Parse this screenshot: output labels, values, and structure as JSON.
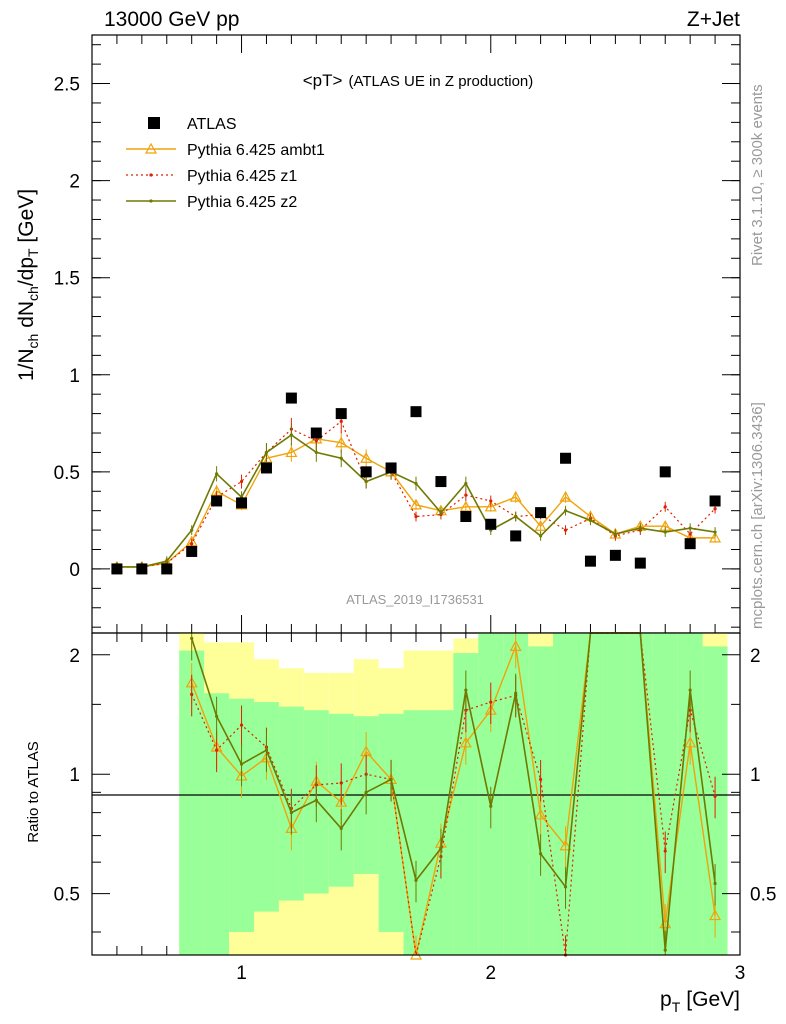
{
  "header": {
    "left": "13000 GeV pp",
    "right": "Z+Jet"
  },
  "side_text": {
    "rivet": "Rivet 3.1.10, ≥ 300k events",
    "mcplots": "mcplots.cern.ch [arXiv:1306.3436]"
  },
  "chart_data": {
    "type": "line",
    "title": "<pT>",
    "subtitle": "(ATLAS UE in Z production)",
    "analysis_id": "ATLAS_2019_I1736531",
    "xlabel": "p",
    "xlabel_sub": "T",
    "xlabel_unit": "[GeV]",
    "ylabel": "1/N",
    "ylabel_parts": [
      "1/N",
      "ch",
      " dN",
      "ch",
      "/dp",
      "T",
      " [GeV]"
    ],
    "ratio_ylabel": "Ratio to ATLAS",
    "xlim": [
      0.4,
      3.0
    ],
    "ylim": [
      -0.33,
      2.75
    ],
    "ratio_ylim": [
      0.35,
      2.27
    ],
    "x_ticks": [
      "1",
      "2",
      "3"
    ],
    "y_ticks": [
      "0",
      "0.5",
      "1",
      "1.5",
      "2",
      "2.5"
    ],
    "ratio_ticks": [
      "0.5",
      "1",
      "2"
    ],
    "legend_position": "top-left",
    "colors": {
      "data": "#000000",
      "ambt1": "#f0a30a",
      "z1": "#dd2200",
      "z2": "#6e7a00",
      "band_green": "#99ff99",
      "band_yellow": "#ffff99",
      "watermark": "#999999"
    },
    "x": [
      0.5,
      0.6,
      0.7,
      0.8,
      0.9,
      1.0,
      1.1,
      1.2,
      1.3,
      1.4,
      1.5,
      1.6,
      1.7,
      1.8,
      1.9,
      2.0,
      2.1,
      2.2,
      2.3,
      2.4,
      2.5,
      2.6,
      2.7,
      2.8,
      2.9
    ],
    "series": [
      {
        "name": "ATLAS",
        "key": "data",
        "values": [
          0.0,
          0.0,
          0.0,
          0.09,
          0.35,
          0.34,
          0.52,
          0.88,
          0.7,
          0.8,
          0.5,
          0.52,
          0.81,
          0.45,
          0.27,
          0.23,
          0.17,
          0.29,
          0.57,
          0.04,
          0.07,
          0.03,
          0.5,
          0.13,
          0.35
        ]
      },
      {
        "name": "Pythia 6.425 ambt1",
        "key": "ambt1",
        "values": [
          0.01,
          0.01,
          0.03,
          0.14,
          0.4,
          0.33,
          0.57,
          0.6,
          0.67,
          0.65,
          0.57,
          0.5,
          0.33,
          0.3,
          0.32,
          0.32,
          0.37,
          0.22,
          0.37,
          0.27,
          0.18,
          0.22,
          0.22,
          0.16,
          0.16
        ]
      },
      {
        "name": "Pythia 6.425 z1",
        "key": "z1",
        "values": [
          0.01,
          0.01,
          0.03,
          0.13,
          0.37,
          0.45,
          0.6,
          0.72,
          0.66,
          0.76,
          0.45,
          0.5,
          0.27,
          0.28,
          0.38,
          0.35,
          0.27,
          0.28,
          0.2,
          0.26,
          0.17,
          0.2,
          0.32,
          0.18,
          0.31
        ]
      },
      {
        "name": "Pythia 6.425 z2",
        "key": "z2",
        "values": [
          0.01,
          0.01,
          0.04,
          0.2,
          0.49,
          0.37,
          0.6,
          0.69,
          0.6,
          0.57,
          0.45,
          0.5,
          0.44,
          0.29,
          0.44,
          0.2,
          0.27,
          0.17,
          0.3,
          0.25,
          0.18,
          0.21,
          0.19,
          0.21,
          0.19
        ]
      }
    ],
    "ratios": {
      "ambt1": [
        null,
        null,
        null,
        1.7,
        1.17,
        0.99,
        1.1,
        0.73,
        0.96,
        0.85,
        1.14,
        0.97,
        0.35,
        0.67,
        1.2,
        1.45,
        2.1,
        0.79,
        0.66,
        5.0,
        5.0,
        5.0,
        0.42,
        1.2,
        0.44
      ],
      "z1": [
        null,
        null,
        null,
        1.59,
        1.15,
        1.33,
        1.17,
        0.82,
        0.94,
        0.95,
        1.0,
        0.97,
        0.33,
        0.62,
        1.45,
        1.52,
        1.58,
        0.97,
        0.35,
        5.0,
        5.0,
        5.0,
        0.64,
        1.45,
        0.88
      ],
      "z2": [
        null,
        null,
        null,
        2.2,
        1.4,
        1.06,
        1.15,
        0.8,
        0.86,
        0.73,
        0.9,
        0.97,
        0.54,
        0.65,
        1.63,
        0.83,
        1.6,
        0.63,
        0.52,
        5.0,
        5.0,
        5.0,
        0.36,
        1.63,
        0.53
      ]
    },
    "ratio_bands": {
      "x_edges": [
        0.75,
        0.85,
        0.95,
        1.05,
        1.15,
        1.25,
        1.35,
        1.45,
        1.55,
        1.65,
        1.75,
        1.85,
        1.95,
        2.05,
        2.15,
        2.25,
        2.35,
        2.45,
        2.55,
        2.65,
        2.75,
        2.85,
        2.95
      ],
      "inner": [
        [
          0.35,
          2.05
        ],
        [
          0.35,
          1.6
        ],
        [
          0.35,
          1.55
        ],
        [
          0.35,
          1.52
        ],
        [
          0.35,
          1.48
        ],
        [
          0.35,
          1.45
        ],
        [
          0.35,
          1.42
        ],
        [
          0.35,
          1.4
        ],
        [
          0.35,
          1.42
        ],
        [
          0.35,
          1.45
        ],
        [
          0.35,
          1.45
        ],
        [
          0.35,
          2.02
        ],
        [
          0.35,
          2.27
        ],
        [
          0.35,
          2.27
        ],
        [
          0.35,
          2.1
        ],
        [
          0.35,
          2.27
        ],
        [
          0.35,
          2.27
        ],
        [
          0.35,
          2.27
        ],
        [
          0.35,
          2.27
        ],
        [
          0.35,
          2.27
        ],
        [
          0.35,
          2.27
        ],
        [
          0.35,
          2.1
        ]
      ],
      "outer": [
        [
          0.35,
          2.27
        ],
        [
          0.35,
          2.15
        ],
        [
          0.35,
          2.15
        ],
        [
          0.35,
          1.95
        ],
        [
          0.35,
          1.85
        ],
        [
          0.35,
          1.8
        ],
        [
          0.35,
          1.8
        ],
        [
          0.35,
          1.95
        ],
        [
          0.35,
          1.85
        ],
        [
          0.35,
          2.05
        ],
        [
          0.35,
          2.05
        ],
        [
          0.35,
          2.2
        ],
        [
          0.35,
          2.27
        ],
        [
          0.35,
          2.27
        ],
        [
          0.35,
          2.27
        ],
        [
          0.35,
          2.27
        ],
        [
          0.35,
          2.27
        ],
        [
          0.35,
          2.27
        ],
        [
          0.35,
          2.27
        ],
        [
          0.35,
          2.27
        ],
        [
          0.35,
          2.27
        ],
        [
          0.35,
          2.27
        ]
      ],
      "inner_low_cut": [
        0.35,
        0.35,
        0.4,
        0.45,
        0.48,
        0.5,
        0.52,
        0.56,
        0.4,
        0.35,
        0.35,
        0.35,
        0.35,
        0.35,
        0.35,
        0.35,
        0.35,
        0.35,
        0.35,
        0.35,
        0.35,
        0.35
      ]
    }
  }
}
